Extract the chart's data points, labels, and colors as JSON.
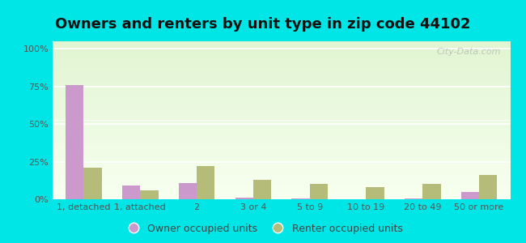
{
  "title": "Owners and renters by unit type in zip code 44102",
  "categories": [
    "1, detached",
    "1, attached",
    "2",
    "3 or 4",
    "5 to 9",
    "10 to 19",
    "20 to 49",
    "50 or more"
  ],
  "owner_values": [
    76,
    9,
    11,
    1,
    0.5,
    0,
    0.5,
    5
  ],
  "renter_values": [
    21,
    6,
    22,
    13,
    10,
    8,
    10,
    16
  ],
  "owner_color": "#cc99cc",
  "renter_color": "#b5bc7a",
  "outer_bg": "#00e5e5",
  "yticks": [
    0,
    25,
    50,
    75,
    100
  ],
  "ylim": [
    0,
    105
  ],
  "title_fontsize": 13,
  "tick_fontsize": 8,
  "legend_fontsize": 9,
  "bar_width": 0.32,
  "watermark": "City-Data.com"
}
